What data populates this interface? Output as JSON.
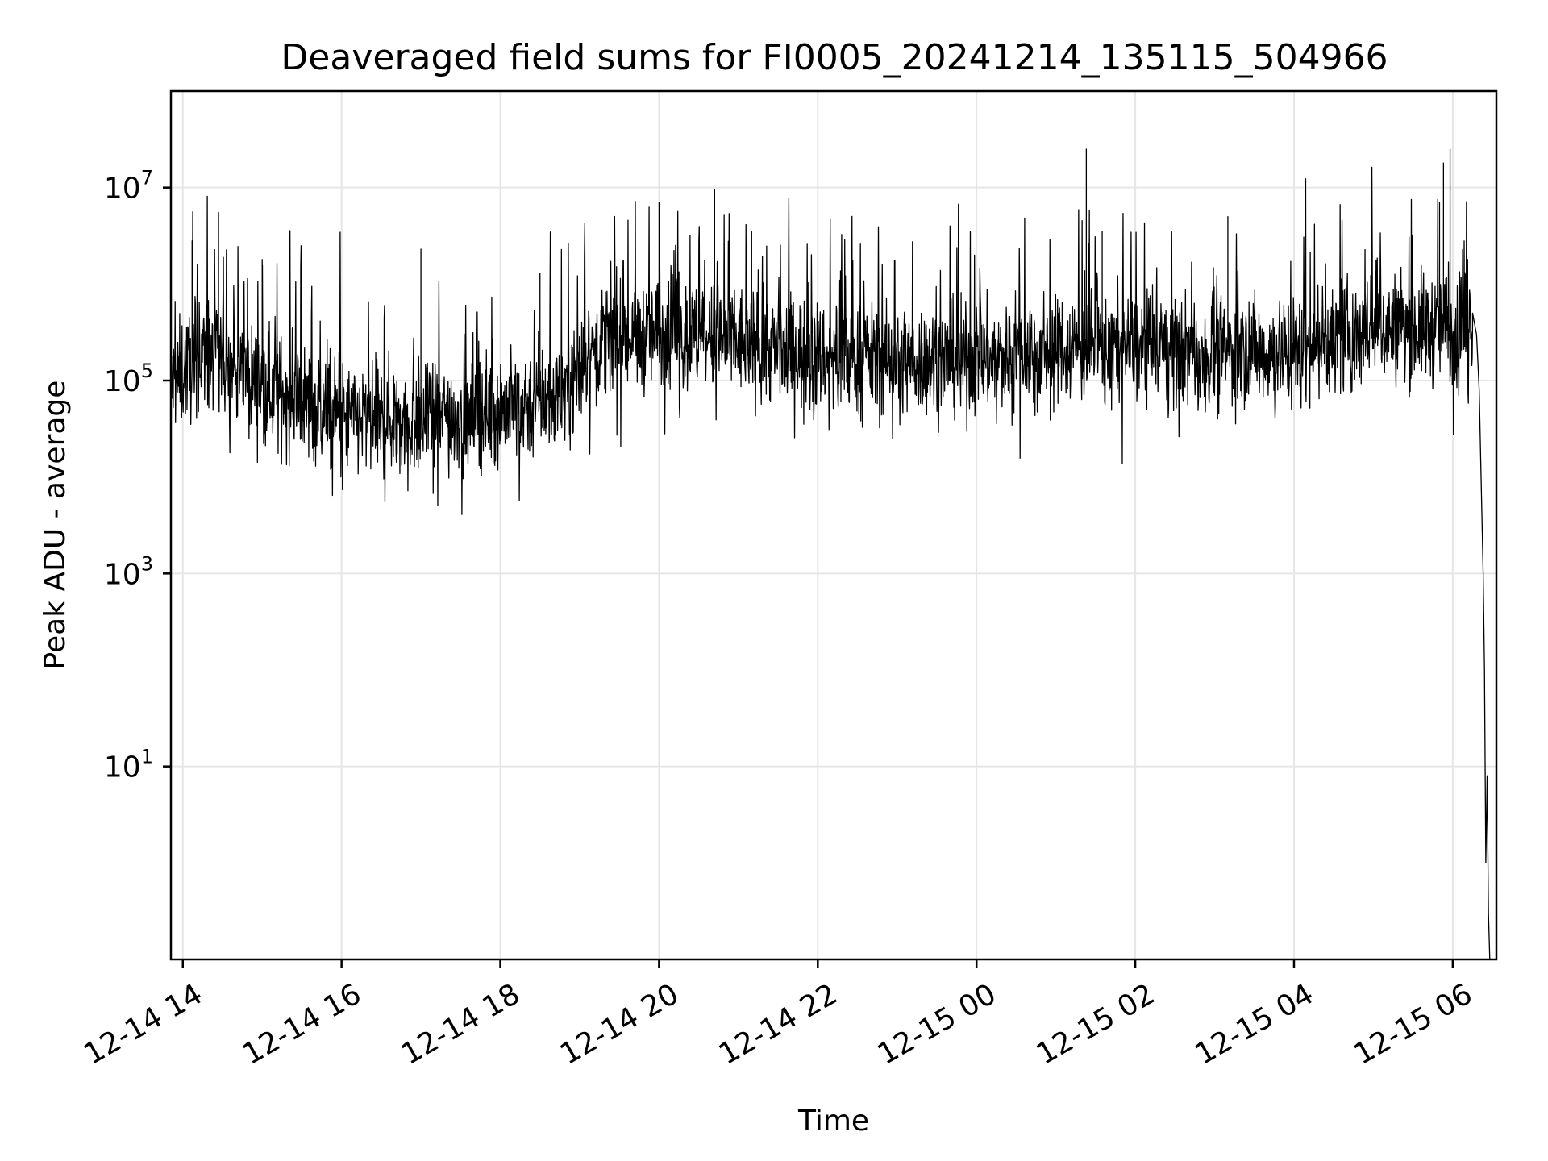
{
  "chart_data": {
    "type": "line",
    "title": "Deaveraged field sums for FI0005_20241214_135115_504966",
    "xlabel": "Time",
    "ylabel": "Peak ADU - average",
    "yscale": "log",
    "xlim": [
      "2024-12-14 13:51",
      "2024-12-15 06:33"
    ],
    "ylim": [
      0.1,
      100000000
    ],
    "grid": true,
    "line_color": "#000000",
    "x_ticks": [
      {
        "time": "2024-12-14 14:00",
        "label": "12-14 14"
      },
      {
        "time": "2024-12-14 16:00",
        "label": "12-14 16"
      },
      {
        "time": "2024-12-14 18:00",
        "label": "12-14 18"
      },
      {
        "time": "2024-12-14 20:00",
        "label": "12-14 20"
      },
      {
        "time": "2024-12-14 22:00",
        "label": "12-14 22"
      },
      {
        "time": "2024-12-15 00:00",
        "label": "12-15 00"
      },
      {
        "time": "2024-12-15 02:00",
        "label": "12-15 02"
      },
      {
        "time": "2024-12-15 04:00",
        "label": "12-15 04"
      },
      {
        "time": "2024-12-15 06:00",
        "label": "12-15 06"
      }
    ],
    "y_ticks": [
      {
        "value": 10,
        "base": "10",
        "exp": "1"
      },
      {
        "value": 1000,
        "base": "10",
        "exp": "3"
      },
      {
        "value": 100000,
        "base": "10",
        "exp": "5"
      },
      {
        "value": 10000000,
        "base": "10",
        "exp": "7"
      }
    ],
    "baseline": [
      {
        "time": "2024-12-14 13:51",
        "y": 90000
      },
      {
        "time": "2024-12-14 14:15",
        "y": 200000
      },
      {
        "time": "2024-12-14 15:00",
        "y": 90000
      },
      {
        "time": "2024-12-14 16:00",
        "y": 40000
      },
      {
        "time": "2024-12-14 17:00",
        "y": 40000
      },
      {
        "time": "2024-12-14 18:00",
        "y": 50000
      },
      {
        "time": "2024-12-14 18:45",
        "y": 70000
      },
      {
        "time": "2024-12-14 19:15",
        "y": 250000
      },
      {
        "time": "2024-12-14 20:00",
        "y": 300000
      },
      {
        "time": "2024-12-14 21:00",
        "y": 250000
      },
      {
        "time": "2024-12-14 22:00",
        "y": 180000
      },
      {
        "time": "2024-12-14 23:00",
        "y": 160000
      },
      {
        "time": "2024-12-15 00:00",
        "y": 170000
      },
      {
        "time": "2024-12-15 01:00",
        "y": 220000
      },
      {
        "time": "2024-12-15 02:00",
        "y": 220000
      },
      {
        "time": "2024-12-15 03:00",
        "y": 200000
      },
      {
        "time": "2024-12-15 04:00",
        "y": 200000
      },
      {
        "time": "2024-12-15 05:00",
        "y": 350000
      },
      {
        "time": "2024-12-15 05:55",
        "y": 350000
      },
      {
        "time": "2024-12-15 06:05",
        "y": 250000
      },
      {
        "time": "2024-12-15 06:15",
        "y": 500000
      }
    ],
    "spikes": [
      {
        "time": "2024-12-14 14:07",
        "y": 2800000
      },
      {
        "time": "2024-12-14 14:27",
        "y": 5500000
      },
      {
        "time": "2024-12-14 15:00",
        "y": 1800000
      },
      {
        "time": "2024-12-14 17:00",
        "y": 2300000
      },
      {
        "time": "2024-12-14 18:30",
        "y": 1300000
      },
      {
        "time": "2024-12-14 20:00",
        "y": 7000000
      },
      {
        "time": "2024-12-14 20:42",
        "y": 9500000
      },
      {
        "time": "2024-12-14 21:10",
        "y": 3500000
      },
      {
        "time": "2024-12-15 01:23",
        "y": 25000000
      },
      {
        "time": "2024-12-15 01:35",
        "y": 3500000
      },
      {
        "time": "2024-12-15 03:10",
        "y": 5000000
      },
      {
        "time": "2024-12-15 05:50",
        "y": 7000000
      },
      {
        "time": "2024-12-15 05:53",
        "y": 18000000
      },
      {
        "time": "2024-12-15 05:58",
        "y": 25000000
      }
    ],
    "tail": [
      {
        "time": "2024-12-15 06:15",
        "y": 500000
      },
      {
        "time": "2024-12-15 06:18",
        "y": 300000
      },
      {
        "time": "2024-12-15 06:20",
        "y": 80000
      },
      {
        "time": "2024-12-15 06:23",
        "y": 1000
      },
      {
        "time": "2024-12-15 06:24",
        "y": 100
      },
      {
        "time": "2024-12-15 06:25",
        "y": 1
      },
      {
        "time": "2024-12-15 06:26",
        "y": 8
      },
      {
        "time": "2024-12-15 06:27",
        "y": 0.3
      },
      {
        "time": "2024-12-15 06:28",
        "y": 0.1
      }
    ]
  }
}
